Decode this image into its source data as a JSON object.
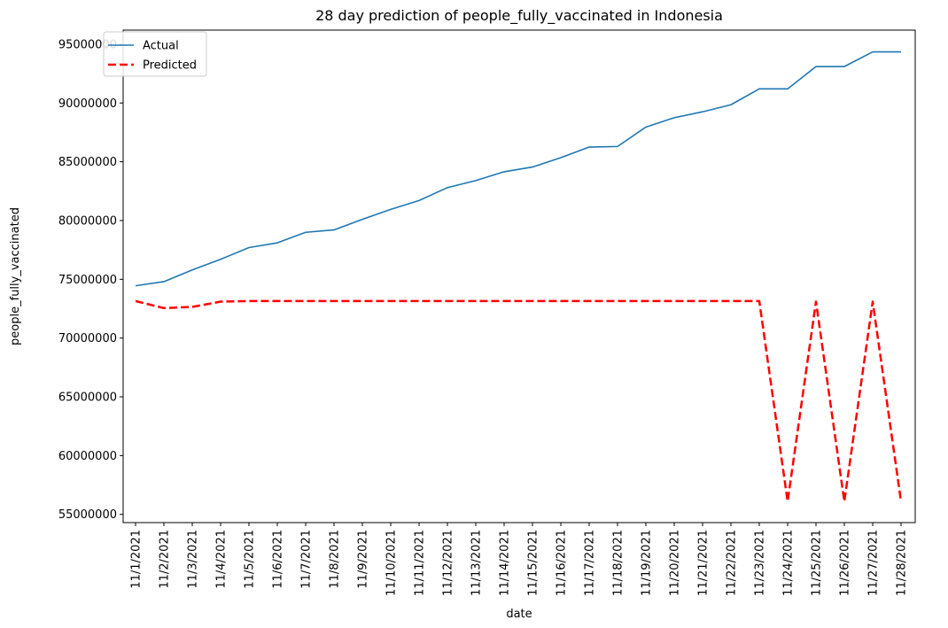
{
  "chart_data": {
    "type": "line",
    "title": "28 day prediction of people_fully_vaccinated in Indonesia",
    "xlabel": "date",
    "ylabel": "people_fully_vaccinated",
    "categories": [
      "11/1/2021",
      "11/2/2021",
      "11/3/2021",
      "11/4/2021",
      "11/5/2021",
      "11/6/2021",
      "11/7/2021",
      "11/8/2021",
      "11/9/2021",
      "11/10/2021",
      "11/11/2021",
      "11/12/2021",
      "11/13/2021",
      "11/14/2021",
      "11/15/2021",
      "11/16/2021",
      "11/17/2021",
      "11/18/2021",
      "11/19/2021",
      "11/20/2021",
      "11/21/2021",
      "11/22/2021",
      "11/23/2021",
      "11/24/2021",
      "11/25/2021",
      "11/26/2021",
      "11/27/2021",
      "11/28/2021"
    ],
    "ylim": [
      54300000,
      96200000
    ],
    "yticks": [
      55000000,
      60000000,
      65000000,
      70000000,
      75000000,
      80000000,
      85000000,
      90000000,
      95000000
    ],
    "ytick_labels": [
      "55000000",
      "60000000",
      "65000000",
      "70000000",
      "75000000",
      "80000000",
      "85000000",
      "90000000",
      "95000000"
    ],
    "grid": false,
    "legend": "top-left",
    "series": [
      {
        "name": "Actual",
        "color": "#1f77b4",
        "style": "solid",
        "values": [
          74450000,
          74800000,
          75800000,
          76700000,
          77700000,
          78100000,
          79000000,
          79200000,
          80100000,
          80950000,
          81700000,
          82800000,
          83400000,
          84150000,
          84550000,
          85350000,
          86250000,
          86300000,
          87950000,
          88750000,
          89250000,
          89850000,
          91200000,
          91200000,
          93100000,
          93100000,
          94350000,
          94350000
        ]
      },
      {
        "name": "Predicted",
        "color": "#ff0000",
        "style": "dashed",
        "values": [
          73150000,
          72550000,
          72650000,
          73100000,
          73150000,
          73150000,
          73150000,
          73150000,
          73150000,
          73150000,
          73150000,
          73150000,
          73150000,
          73150000,
          73150000,
          73150000,
          73150000,
          73150000,
          73150000,
          73150000,
          73150000,
          73150000,
          73150000,
          56100000,
          73100000,
          56100000,
          73100000,
          56100000
        ]
      }
    ]
  }
}
